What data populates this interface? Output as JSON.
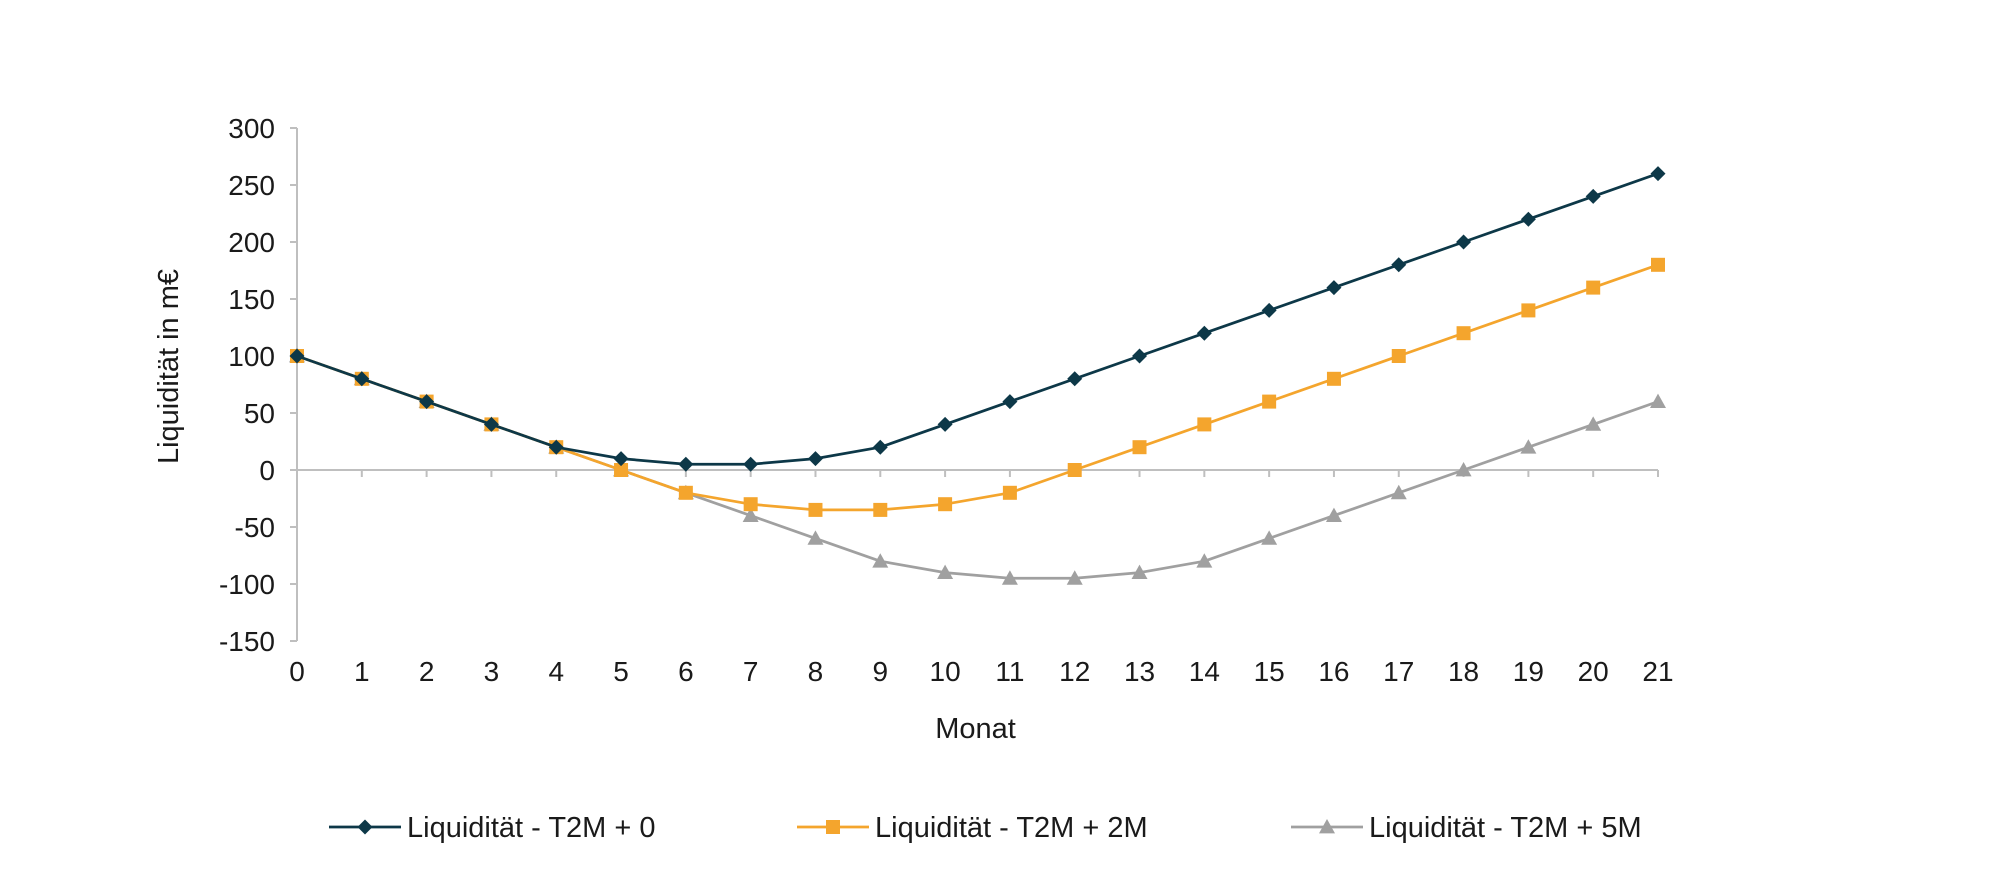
{
  "chart_data": {
    "type": "line",
    "title": "",
    "xlabel": "Monat",
    "ylabel": "Liquidität in m€",
    "x": [
      0,
      1,
      2,
      3,
      4,
      5,
      6,
      7,
      8,
      9,
      10,
      11,
      12,
      13,
      14,
      15,
      16,
      17,
      18,
      19,
      20,
      21
    ],
    "xlim": [
      0,
      21
    ],
    "ylim": [
      -150,
      300
    ],
    "yticks": [
      300,
      250,
      200,
      150,
      100,
      50,
      0,
      -50,
      -100,
      -150
    ],
    "ytick_labels": [
      "300",
      "250",
      "200",
      "150",
      "100",
      "50",
      "0",
      "-50",
      "-100",
      "-150"
    ],
    "xtick_labels": [
      "0",
      "1",
      "2",
      "3",
      "4",
      "5",
      "6",
      "7",
      "8",
      "9",
      "10",
      "11",
      "12",
      "13",
      "14",
      "15",
      "16",
      "17",
      "18",
      "19",
      "20",
      "21"
    ],
    "grid": false,
    "legend_position": "bottom",
    "series": [
      {
        "name": "Liquidität - T2M + 0",
        "color": "#0d3848",
        "marker": "diamond",
        "values": [
          100,
          80,
          60,
          40,
          20,
          10,
          5,
          5,
          10,
          20,
          40,
          60,
          80,
          100,
          120,
          140,
          160,
          180,
          200,
          220,
          240,
          260
        ]
      },
      {
        "name": "Liquidität - T2M + 2M",
        "color": "#f4a52d",
        "marker": "square",
        "values": [
          100,
          80,
          60,
          40,
          20,
          0,
          -20,
          -30,
          -35,
          -35,
          -30,
          -20,
          0,
          20,
          40,
          60,
          80,
          100,
          120,
          140,
          160,
          180
        ]
      },
      {
        "name": "Liquidität - T2M + 5M",
        "color": "#a0a0a0",
        "marker": "triangle",
        "values": [
          100,
          80,
          60,
          40,
          20,
          0,
          -20,
          -40,
          -60,
          -80,
          -90,
          -95,
          -95,
          -90,
          -80,
          -60,
          -40,
          -20,
          0,
          20,
          40,
          60
        ]
      }
    ]
  }
}
